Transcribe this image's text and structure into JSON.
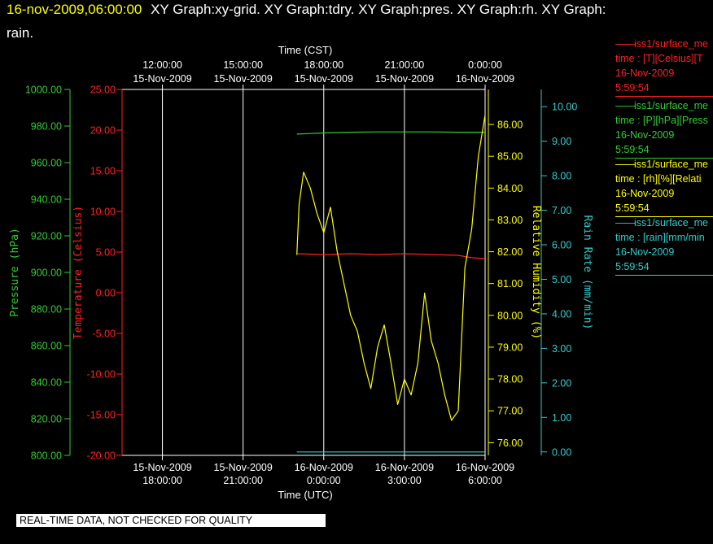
{
  "header": {
    "timestamp": "16-nov-2009,06:00:00",
    "titles_line1": "XY Graph:xy-grid.  XY Graph:tdry.  XY Graph:pres.  XY Graph:rh.  XY Graph:",
    "titles_line2": "rain."
  },
  "colors": {
    "background": "#000000",
    "header_timestamp": "#ffff00",
    "text": "#ffffff",
    "temperature": "#ff2020",
    "pressure": "#33cc33",
    "humidity": "#ffff00",
    "rain": "#33cccc",
    "grid": "#ffffff"
  },
  "legend": [
    {
      "line1": "iss1/surface_me",
      "line2": "time : [T][Celsius][T",
      "line3": "16-Nov-2009",
      "line4": "5:59:54",
      "color": "#ff2020"
    },
    {
      "line1": "iss1/surface_me",
      "line2": "time : [P][hPa][Press",
      "line3": "16-Nov-2009",
      "line4": "5:59:54",
      "color": "#33cc33"
    },
    {
      "line1": "iss1/surface_me",
      "line2": "time : [rh][%][Relati",
      "line3": "16-Nov-2009",
      "line4": "5:59:54",
      "color": "#ffff00"
    },
    {
      "line1": "iss1/surface_me",
      "line2": "time : [rain][mm/min",
      "line3": "16-Nov-2009",
      "line4": "5:59:54",
      "color": "#33cccc"
    }
  ],
  "banner": "REAL-TIME DATA, NOT CHECKED FOR QUALITY",
  "chart_data": {
    "type": "line",
    "x_axis_bottom": {
      "label": "Time (UTC)",
      "range": [
        "2009-11-15T16:30:00",
        "2009-11-16T06:00:00"
      ],
      "ticks": [
        {
          "value": "2009-11-15T18:00:00",
          "date": "15-Nov-2009",
          "time": "18:00:00"
        },
        {
          "value": "2009-11-15T21:00:00",
          "date": "15-Nov-2009",
          "time": "21:00:00"
        },
        {
          "value": "2009-11-16T00:00:00",
          "date": "16-Nov-2009",
          "time": "0:00:00"
        },
        {
          "value": "2009-11-16T03:00:00",
          "date": "16-Nov-2009",
          "time": "3:00:00"
        },
        {
          "value": "2009-11-16T06:00:00",
          "date": "16-Nov-2009",
          "time": "6:00:00"
        }
      ]
    },
    "x_axis_top": {
      "label": "Time (CST)",
      "ticks": [
        {
          "value": "2009-11-15T18:00:00",
          "time": "12:00:00",
          "date": "15-Nov-2009"
        },
        {
          "value": "2009-11-15T21:00:00",
          "time": "15:00:00",
          "date": "15-Nov-2009"
        },
        {
          "value": "2009-11-16T00:00:00",
          "time": "18:00:00",
          "date": "15-Nov-2009"
        },
        {
          "value": "2009-11-16T03:00:00",
          "time": "21:00:00",
          "date": "15-Nov-2009"
        },
        {
          "value": "2009-11-16T06:00:00",
          "time": "0:00:00",
          "date": "16-Nov-2009"
        }
      ]
    },
    "y_axes": {
      "pressure": {
        "label": "Pressure (hPa)",
        "range": [
          800,
          1000
        ],
        "ticks": [
          "800.00",
          "820.00",
          "840.00",
          "860.00",
          "880.00",
          "900.00",
          "920.00",
          "940.00",
          "960.00",
          "980.00",
          "1000.00"
        ]
      },
      "temperature": {
        "label": "Temperature (Celsius)",
        "range": [
          -20,
          25
        ],
        "ticks": [
          "-20.00",
          "-15.00",
          "-10.00",
          "-5.00",
          "0.00",
          "5.00",
          "10.00",
          "15.00",
          "20.00",
          "25.00"
        ]
      },
      "humidity": {
        "label": "Relative Humidity (%)",
        "range": [
          75.6,
          87.1
        ],
        "ticks": [
          "76.00",
          "77.00",
          "78.00",
          "79.00",
          "80.00",
          "81.00",
          "82.00",
          "83.00",
          "84.00",
          "85.00",
          "86.00"
        ]
      },
      "rain": {
        "label": "Rain Rate (mm/min)",
        "range": [
          -0.1,
          10.5
        ],
        "ticks": [
          "0.00",
          "1.00",
          "2.00",
          "3.00",
          "4.00",
          "5.00",
          "6.00",
          "7.00",
          "8.00",
          "9.00",
          "10.00"
        ]
      }
    },
    "grid": true,
    "series": [
      {
        "key": "temperature",
        "axis": "temperature",
        "x": [
          "2009-11-15T23:00:00",
          "2009-11-16T00:00:00",
          "2009-11-16T01:00:00",
          "2009-11-16T02:00:00",
          "2009-11-16T03:00:00",
          "2009-11-16T04:00:00",
          "2009-11-16T05:00:00",
          "2009-11-16T05:30:00",
          "2009-11-16T06:00:00"
        ],
        "y": [
          4.8,
          4.7,
          4.8,
          4.7,
          4.8,
          4.7,
          4.6,
          4.3,
          4.2
        ]
      },
      {
        "key": "pressure",
        "axis": "pressure",
        "x": [
          "2009-11-15T23:00:00",
          "2009-11-16T00:00:00",
          "2009-11-16T01:00:00",
          "2009-11-16T02:00:00",
          "2009-11-16T03:00:00",
          "2009-11-16T04:00:00",
          "2009-11-16T05:00:00",
          "2009-11-16T06:00:00"
        ],
        "y": [
          975.6,
          976.2,
          976.6,
          976.8,
          976.8,
          976.8,
          976.6,
          976.6
        ]
      },
      {
        "key": "humidity",
        "axis": "humidity",
        "x": [
          "2009-11-15T23:00:00",
          "2009-11-15T23:05:00",
          "2009-11-15T23:15:00",
          "2009-11-15T23:30:00",
          "2009-11-15T23:45:00",
          "2009-11-16T00:00:00",
          "2009-11-16T00:15:00",
          "2009-11-16T00:30:00",
          "2009-11-16T00:45:00",
          "2009-11-16T01:00:00",
          "2009-11-16T01:15:00",
          "2009-11-16T01:30:00",
          "2009-11-16T01:45:00",
          "2009-11-16T02:00:00",
          "2009-11-16T02:15:00",
          "2009-11-16T02:30:00",
          "2009-11-16T02:45:00",
          "2009-11-16T03:00:00",
          "2009-11-16T03:15:00",
          "2009-11-16T03:30:00",
          "2009-11-16T03:45:00",
          "2009-11-16T04:00:00",
          "2009-11-16T04:15:00",
          "2009-11-16T04:30:00",
          "2009-11-16T04:45:00",
          "2009-11-16T05:00:00",
          "2009-11-16T05:15:00",
          "2009-11-16T05:30:00",
          "2009-11-16T05:45:00",
          "2009-11-16T06:00:00"
        ],
        "y": [
          81.9,
          83.5,
          84.5,
          84.0,
          83.2,
          82.6,
          83.4,
          82.0,
          81.0,
          80.0,
          79.5,
          78.5,
          77.7,
          79.0,
          79.7,
          78.5,
          77.2,
          78.0,
          77.5,
          78.5,
          80.7,
          79.2,
          78.5,
          77.5,
          76.7,
          77.0,
          81.5,
          82.7,
          85.0,
          86.3
        ]
      },
      {
        "key": "rain",
        "axis": "rain",
        "x": [
          "2009-11-15T23:00:00",
          "2009-11-16T06:00:00"
        ],
        "y": [
          0.0,
          0.0
        ]
      }
    ]
  }
}
